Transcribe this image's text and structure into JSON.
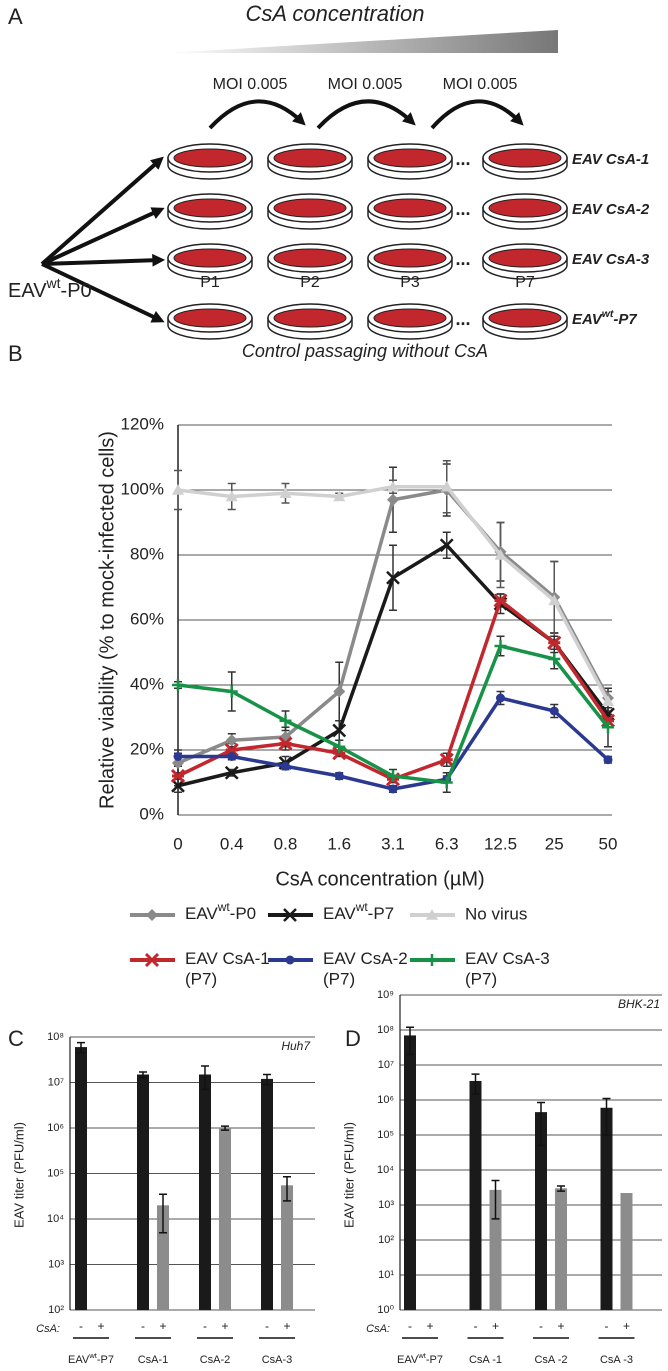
{
  "panel_a": {
    "label": "A",
    "gradient_label": "CsA concentration",
    "moi_labels": [
      "MOI 0.005",
      "MOI 0.005",
      "MOI 0.005"
    ],
    "passage_labels": [
      "P1",
      "P2",
      "P3",
      "P7"
    ],
    "ellipsis": "...",
    "source": [
      {
        "text": "EAV"
      },
      {
        "text": "wt",
        "sup": true
      },
      {
        "text": "-P0"
      }
    ],
    "rows": [
      {
        "label": "EAV CsA-1",
        "color": "#c1272d"
      },
      {
        "label": "EAV CsA-2",
        "color": "#2b3990"
      },
      {
        "label": "EAV CsA-3",
        "color": "#179247"
      },
      {
        "label": [
          {
            "text": "EAV"
          },
          {
            "text": "wt",
            "sup": true
          },
          {
            "text": "-P7"
          }
        ],
        "color": "#1a1a1a"
      }
    ],
    "footer": "Control passaging without CsA"
  },
  "chart_data": [
    {
      "type": "line",
      "label": "B",
      "ylabel": "Relative viability (% to mock-infected cells)",
      "xlabel": "CsA concentration (µM)",
      "categories": [
        "0",
        "0.4",
        "0.8",
        "1.6",
        "3.1",
        "6.3",
        "12.5",
        "25",
        "50"
      ],
      "ylim": [
        0,
        120
      ],
      "yticks": [
        {
          "value": 0,
          "label": "0%"
        },
        {
          "value": 20,
          "label": "20%"
        },
        {
          "value": 40,
          "label": "40%"
        },
        {
          "value": 60,
          "label": "60%"
        },
        {
          "value": 80,
          "label": "80%"
        },
        {
          "value": 100,
          "label": "100%"
        },
        {
          "value": 120,
          "label": "120%"
        }
      ],
      "grid": true,
      "series": [
        {
          "name": [
            {
              "text": "EAV"
            },
            {
              "text": "wt",
              "sup": true
            },
            {
              "text": "-P0"
            }
          ],
          "color": "#8a8a8a",
          "marker": "diamond",
          "values": [
            16,
            23,
            24,
            38,
            97,
            100,
            81,
            67,
            36
          ],
          "errors": [
            3,
            2,
            3,
            9,
            10,
            8,
            9,
            11,
            3
          ]
        },
        {
          "name": [
            {
              "text": "EAV"
            },
            {
              "text": "wt",
              "sup": true
            },
            {
              "text": "-P7"
            }
          ],
          "color": "#1a1a1a",
          "marker": "x",
          "values": [
            9,
            13,
            16,
            26,
            73,
            83,
            65,
            53,
            31
          ],
          "errors": [
            2,
            1,
            2,
            3,
            10,
            4,
            3,
            3,
            3
          ]
        },
        {
          "name": "No virus",
          "color": "#d0d0d0",
          "marker": "triangle",
          "values": [
            100,
            98,
            99,
            98,
            101,
            101,
            80,
            66,
            35
          ],
          "errors": [
            6,
            4,
            3,
            1,
            2,
            8,
            10,
            12,
            3
          ]
        },
        {
          "name": [
            {
              "text": "EAV CsA-1"
            },
            {
              "text": "(P7)",
              "newline": true
            }
          ],
          "color": "#c1272d",
          "marker": "asterisk",
          "values": [
            12,
            20,
            22,
            19,
            11,
            17,
            66,
            53,
            29
          ],
          "errors": [
            3,
            2,
            2,
            1,
            1,
            2,
            2,
            2,
            2
          ]
        },
        {
          "name": [
            {
              "text": "EAV CsA-2"
            },
            {
              "text": "(P7)",
              "newline": true
            }
          ],
          "color": "#2b3990",
          "marker": "circle",
          "values": [
            18,
            18,
            15,
            12,
            8,
            11,
            36,
            32,
            17
          ],
          "errors": [
            2,
            1,
            1,
            1,
            1,
            1,
            2,
            2,
            1
          ]
        },
        {
          "name": [
            {
              "text": "EAV CsA-3"
            },
            {
              "text": "(P7)",
              "newline": true
            }
          ],
          "color": "#179247",
          "marker": "plus",
          "values": [
            40,
            38,
            29,
            21,
            12,
            10,
            52,
            48,
            27
          ],
          "errors": [
            1,
            6,
            3,
            2,
            2,
            3,
            3,
            3,
            6
          ]
        }
      ]
    },
    {
      "type": "bar",
      "label": "C",
      "ylabel": "EAV titer (PFU/ml)",
      "annotation": "Huh7",
      "log_scale": true,
      "group_label": "CsA:",
      "categories": [
        [
          {
            "text": "EAV"
          },
          {
            "text": "wt",
            "sup": true
          },
          {
            "text": "-P7"
          }
        ],
        "CsA-1",
        "CsA-2",
        "CsA-3"
      ],
      "ylim": [
        100,
        100000000
      ],
      "yticks": [
        {
          "value": 100,
          "label": "10²"
        },
        {
          "value": 1000,
          "label": "10³"
        },
        {
          "value": 10000,
          "label": "10⁴"
        },
        {
          "value": 100000,
          "label": "10⁵"
        },
        {
          "value": 1000000,
          "label": "10⁶"
        },
        {
          "value": 10000000,
          "label": "10⁷"
        },
        {
          "value": 100000000,
          "label": "10⁸"
        }
      ],
      "grid": true,
      "series": [
        {
          "name": "-",
          "color": "#1a1a1a",
          "values": [
            60000000,
            15000000,
            15000000,
            12000000
          ],
          "errors": [
            15000000,
            2000000,
            8000000,
            3000000
          ]
        },
        {
          "name": "+",
          "color": "#8c8c8c",
          "values": [
            null,
            20000,
            1000000,
            55000
          ],
          "errors": [
            null,
            15000,
            100000,
            30000
          ]
        }
      ]
    },
    {
      "type": "bar",
      "label": "D",
      "ylabel": "EAV titer (PFU/ml)",
      "annotation": "BHK-21",
      "log_scale": true,
      "group_label": "CsA:",
      "categories": [
        [
          {
            "text": "EAV"
          },
          {
            "text": "wt",
            "sup": true
          },
          {
            "text": "-P7"
          }
        ],
        "CsA -1",
        "CsA -2",
        "CsA -3"
      ],
      "ylim": [
        1,
        1000000000
      ],
      "yticks": [
        {
          "value": 1,
          "label": "10⁰"
        },
        {
          "value": 10,
          "label": "10¹"
        },
        {
          "value": 100,
          "label": "10²"
        },
        {
          "value": 1000,
          "label": "10³"
        },
        {
          "value": 10000,
          "label": "10⁴"
        },
        {
          "value": 100000,
          "label": "10⁵"
        },
        {
          "value": 1000000,
          "label": "10⁶"
        },
        {
          "value": 10000000,
          "label": "10⁷"
        },
        {
          "value": 100000000,
          "label": "10⁸"
        },
        {
          "value": 1000000000,
          "label": "10⁹"
        }
      ],
      "grid": true,
      "series": [
        {
          "name": "-",
          "color": "#1a1a1a",
          "values": [
            70000000,
            3500000,
            450000,
            600000
          ],
          "errors": [
            50000000,
            2000000,
            400000,
            500000
          ]
        },
        {
          "name": "+",
          "color": "#8c8c8c",
          "values": [
            null,
            2700,
            3000,
            2200
          ],
          "errors": [
            null,
            2300,
            500,
            3000
          ]
        }
      ]
    }
  ]
}
